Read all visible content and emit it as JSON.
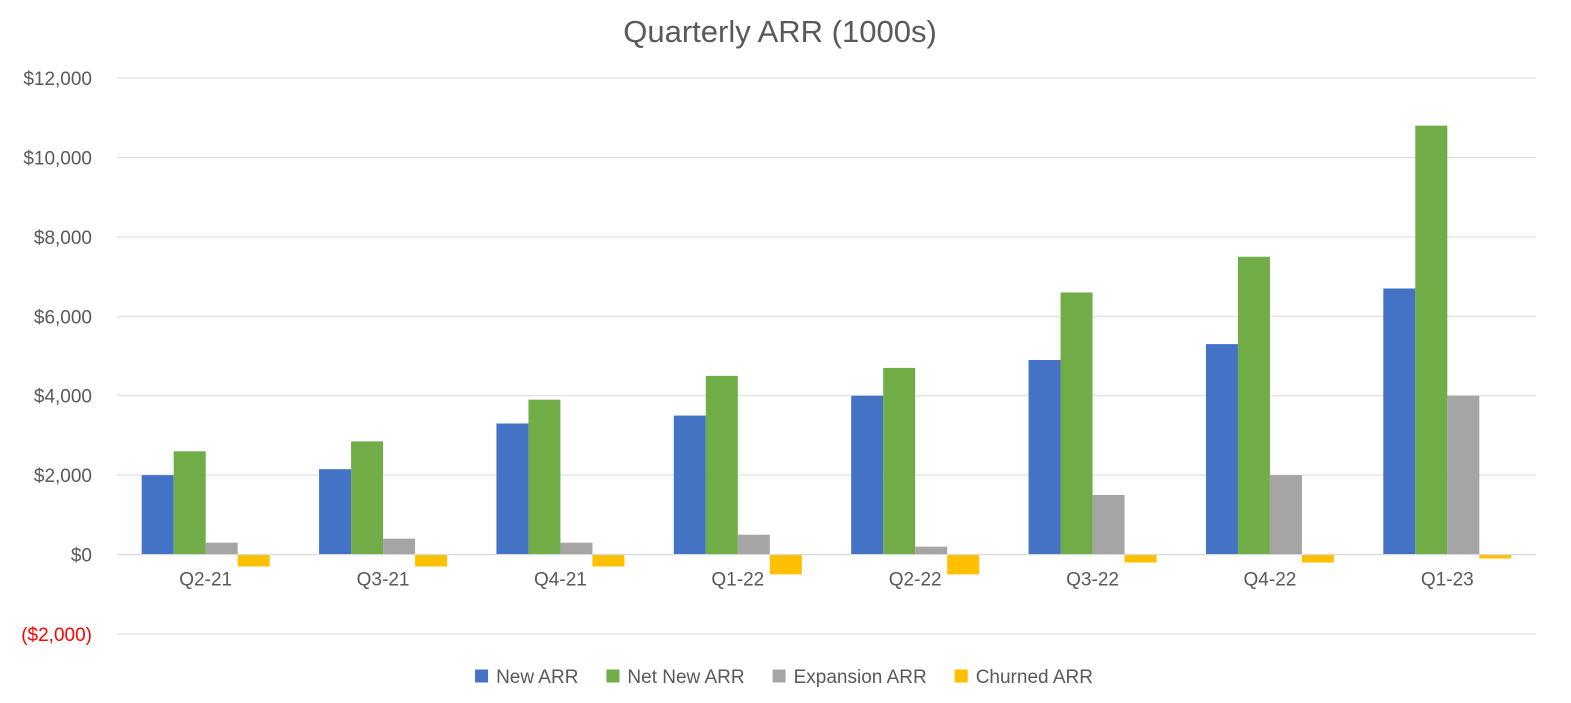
{
  "chart_data": {
    "type": "bar",
    "title": "Quarterly ARR (1000s)",
    "xlabel": "",
    "ylabel": "",
    "categories": [
      "Q2-21",
      "Q3-21",
      "Q4-21",
      "Q1-22",
      "Q2-22",
      "Q3-22",
      "Q4-22",
      "Q1-23"
    ],
    "series": [
      {
        "name": "New ARR",
        "color": "#4472C4",
        "values": [
          2000,
          2150,
          3300,
          3500,
          4000,
          4900,
          5300,
          6700
        ]
      },
      {
        "name": "Net New ARR",
        "color": "#70AD47",
        "values": [
          2600,
          2850,
          3900,
          4500,
          4700,
          6600,
          7500,
          10800
        ]
      },
      {
        "name": "Expansion ARR",
        "color": "#A5A5A5",
        "values": [
          300,
          400,
          300,
          500,
          200,
          1500,
          2000,
          4000
        ]
      },
      {
        "name": "Churned ARR",
        "color": "#FFC000",
        "values": [
          -300,
          -300,
          -300,
          -500,
          -500,
          -200,
          -200,
          -100
        ]
      }
    ],
    "ylim": [
      -2000,
      12000
    ],
    "yticks": [
      -2000,
      0,
      2000,
      4000,
      6000,
      8000,
      10000,
      12000
    ],
    "ytick_labels": [
      "($2,000)",
      "$0",
      "$2,000",
      "$4,000",
      "$6,000",
      "$8,000",
      "$10,000",
      "$12,000"
    ],
    "negative_tick_color": "#FF0000",
    "gridlines": true,
    "legend_position": "bottom"
  }
}
